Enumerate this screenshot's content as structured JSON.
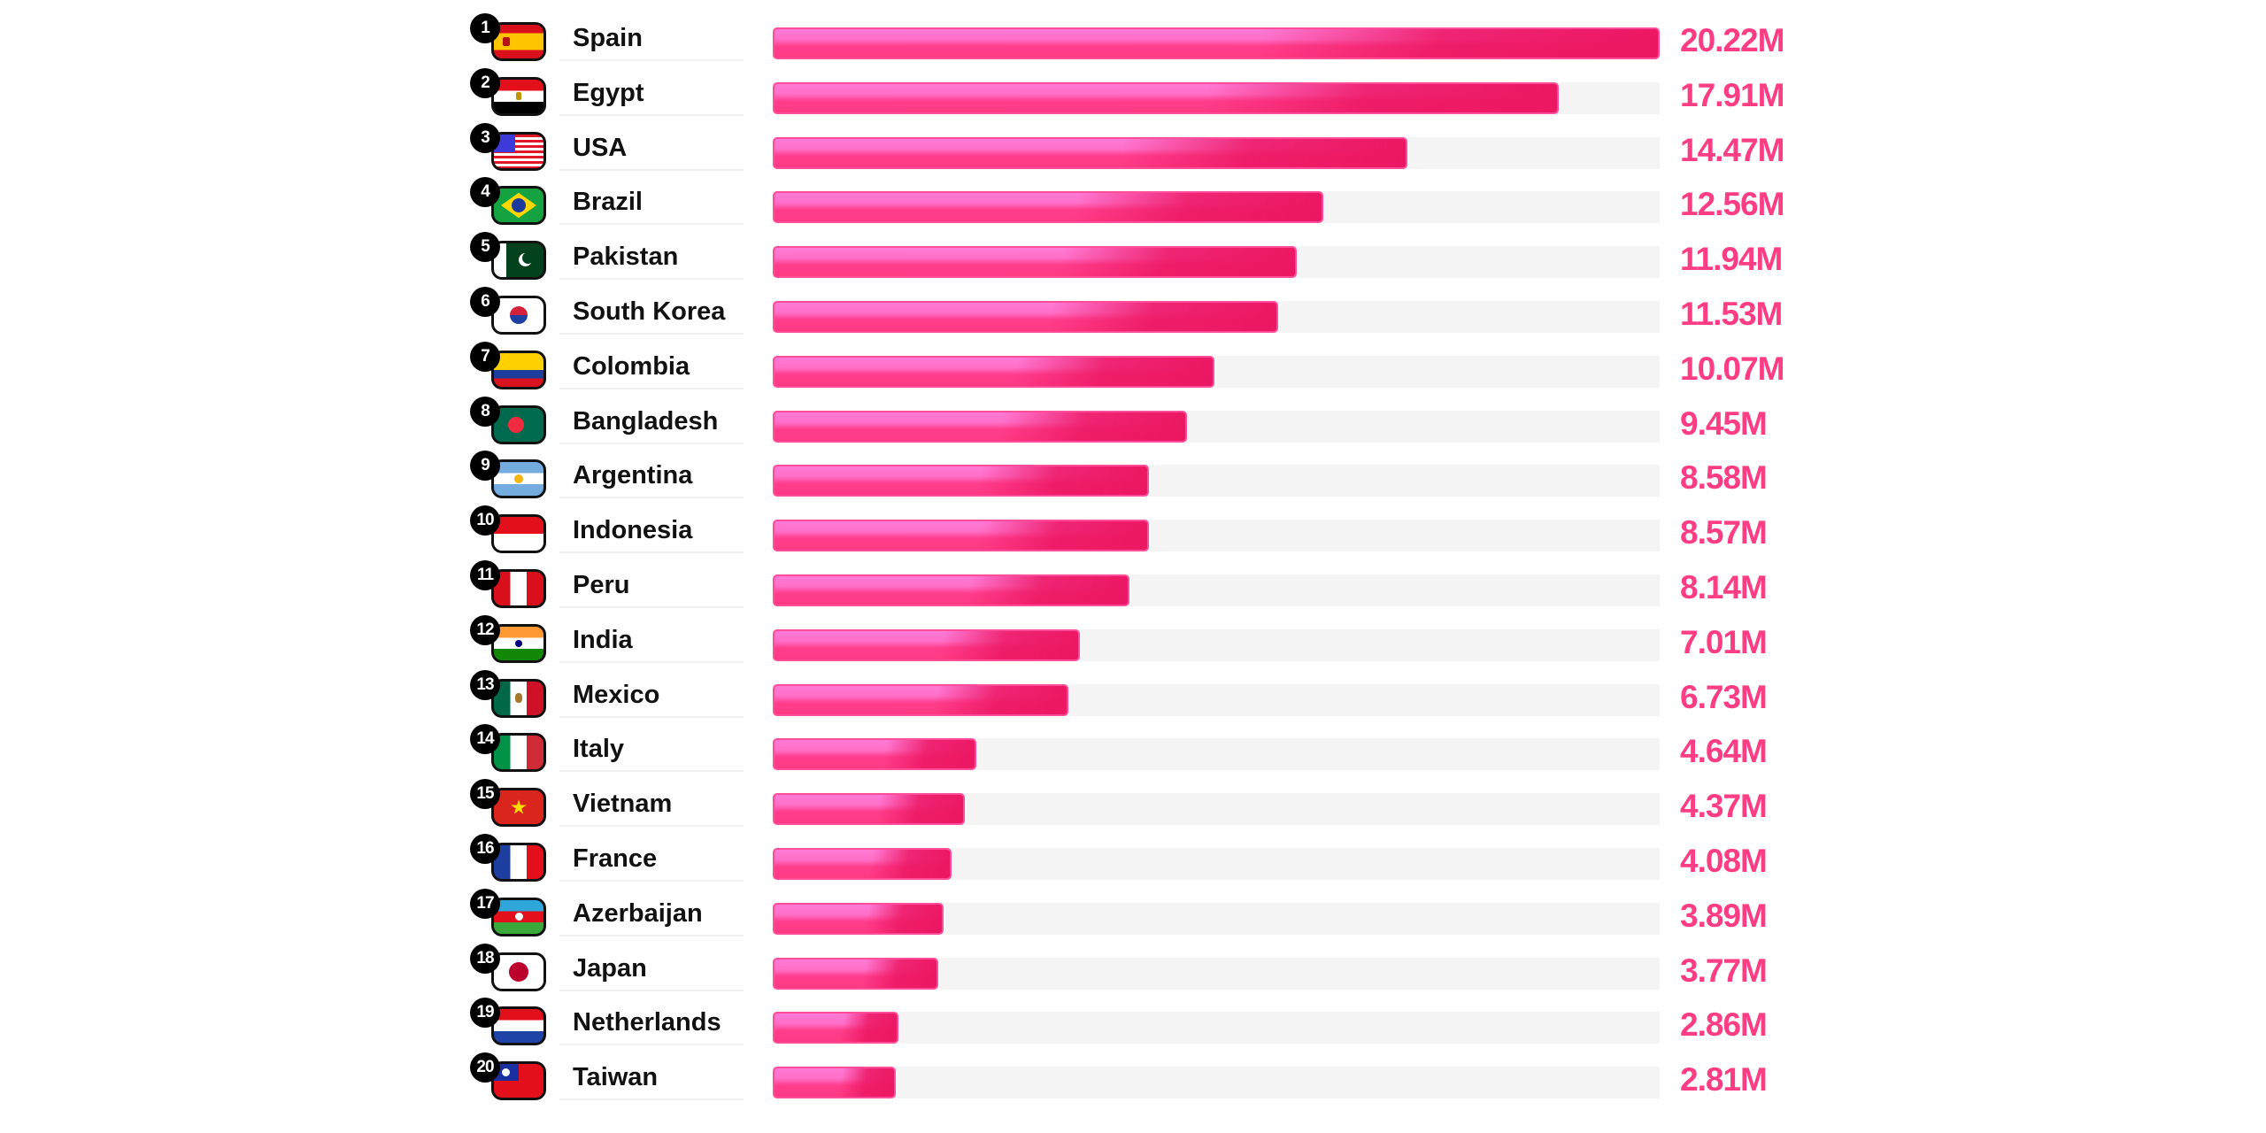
{
  "chart_data": {
    "type": "bar",
    "orientation": "horizontal",
    "title": "",
    "xlim": [
      0,
      20.22
    ],
    "unit": "M",
    "items": [
      {
        "rank": "1",
        "country": "Spain",
        "flag": "spain-flag",
        "value": 20.22,
        "label": "20.22M"
      },
      {
        "rank": "2",
        "country": "Egypt",
        "flag": "egypt-flag",
        "value": 17.91,
        "label": "17.91M"
      },
      {
        "rank": "3",
        "country": "USA",
        "flag": "usa-flag",
        "value": 14.47,
        "label": "14.47M"
      },
      {
        "rank": "4",
        "country": "Brazil",
        "flag": "brazil-flag",
        "value": 12.56,
        "label": "12.56M"
      },
      {
        "rank": "5",
        "country": "Pakistan",
        "flag": "pakistan-flag",
        "value": 11.94,
        "label": "11.94M"
      },
      {
        "rank": "6",
        "country": "South Korea",
        "flag": "south-korea-flag",
        "value": 11.53,
        "label": "11.53M"
      },
      {
        "rank": "7",
        "country": "Colombia",
        "flag": "colombia-flag",
        "value": 10.07,
        "label": "10.07M"
      },
      {
        "rank": "8",
        "country": "Bangladesh",
        "flag": "bangladesh-flag",
        "value": 9.45,
        "label": "9.45M"
      },
      {
        "rank": "9",
        "country": "Argentina",
        "flag": "argentina-flag",
        "value": 8.58,
        "label": "8.58M"
      },
      {
        "rank": "10",
        "country": "Indonesia",
        "flag": "indonesia-flag",
        "value": 8.57,
        "label": "8.57M"
      },
      {
        "rank": "11",
        "country": "Peru",
        "flag": "peru-flag",
        "value": 8.14,
        "label": "8.14M"
      },
      {
        "rank": "12",
        "country": "India",
        "flag": "india-flag",
        "value": 7.01,
        "label": "7.01M"
      },
      {
        "rank": "13",
        "country": "Mexico",
        "flag": "mexico-flag",
        "value": 6.73,
        "label": "6.73M"
      },
      {
        "rank": "14",
        "country": "Italy",
        "flag": "italy-flag",
        "value": 4.64,
        "label": "4.64M"
      },
      {
        "rank": "15",
        "country": "Vietnam",
        "flag": "vietnam-flag",
        "value": 4.37,
        "label": "4.37M"
      },
      {
        "rank": "16",
        "country": "France",
        "flag": "france-flag",
        "value": 4.08,
        "label": "4.08M"
      },
      {
        "rank": "17",
        "country": "Azerbaijan",
        "flag": "azerbaijan-flag",
        "value": 3.89,
        "label": "3.89M"
      },
      {
        "rank": "18",
        "country": "Japan",
        "flag": "japan-flag",
        "value": 3.77,
        "label": "3.77M"
      },
      {
        "rank": "19",
        "country": "Netherlands",
        "flag": "netherlands-flag",
        "value": 2.86,
        "label": "2.86M"
      },
      {
        "rank": "20",
        "country": "Taiwan",
        "flag": "taiwan-flag",
        "value": 2.81,
        "label": "2.81M"
      }
    ]
  },
  "colors": {
    "bar_light": "#ff7ad6",
    "bar_dark": "#ec1763",
    "value_text": "#ff3d84",
    "track": "#f4f4f4"
  }
}
